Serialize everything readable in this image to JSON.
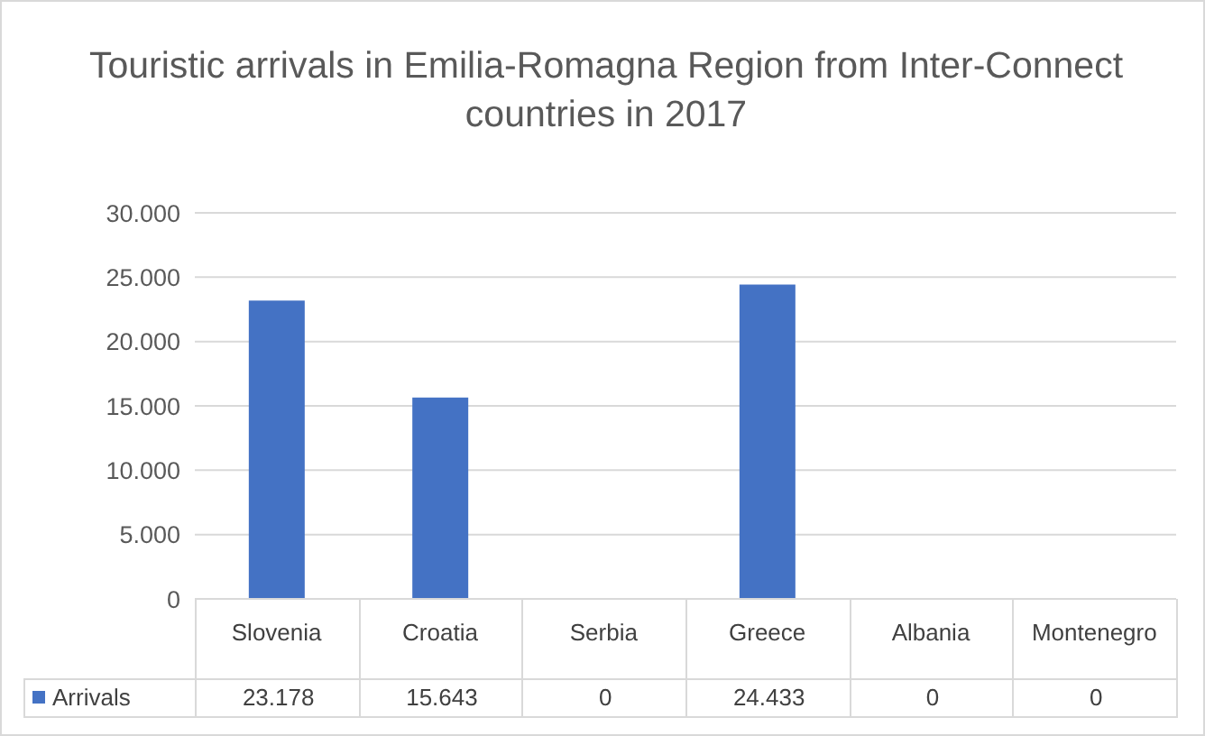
{
  "chart_data": {
    "type": "bar",
    "title": "Touristic arrivals in Emilia-Romagna Region from Inter-Connect countries in 2017",
    "categories": [
      "Slovenia",
      "Croatia",
      "Serbia",
      "Greece",
      "Albania",
      "Montenegro"
    ],
    "series": [
      {
        "name": "Arrivals",
        "color": "#4472c4",
        "values": [
          23178,
          15643,
          0,
          24433,
          0,
          0
        ],
        "value_labels": [
          "23.178",
          "15.643",
          "0",
          "24.433",
          "0",
          "0"
        ]
      }
    ],
    "ylim": [
      0,
      30000
    ],
    "yticks": [
      {
        "value": 0,
        "label": "0"
      },
      {
        "value": 5000,
        "label": "5.000"
      },
      {
        "value": 10000,
        "label": "10.000"
      },
      {
        "value": 15000,
        "label": "15.000"
      },
      {
        "value": 20000,
        "label": "20.000"
      },
      {
        "value": 25000,
        "label": "25.000"
      },
      {
        "value": 30000,
        "label": "30.000"
      }
    ],
    "grid": "y",
    "legend": "bottom"
  }
}
